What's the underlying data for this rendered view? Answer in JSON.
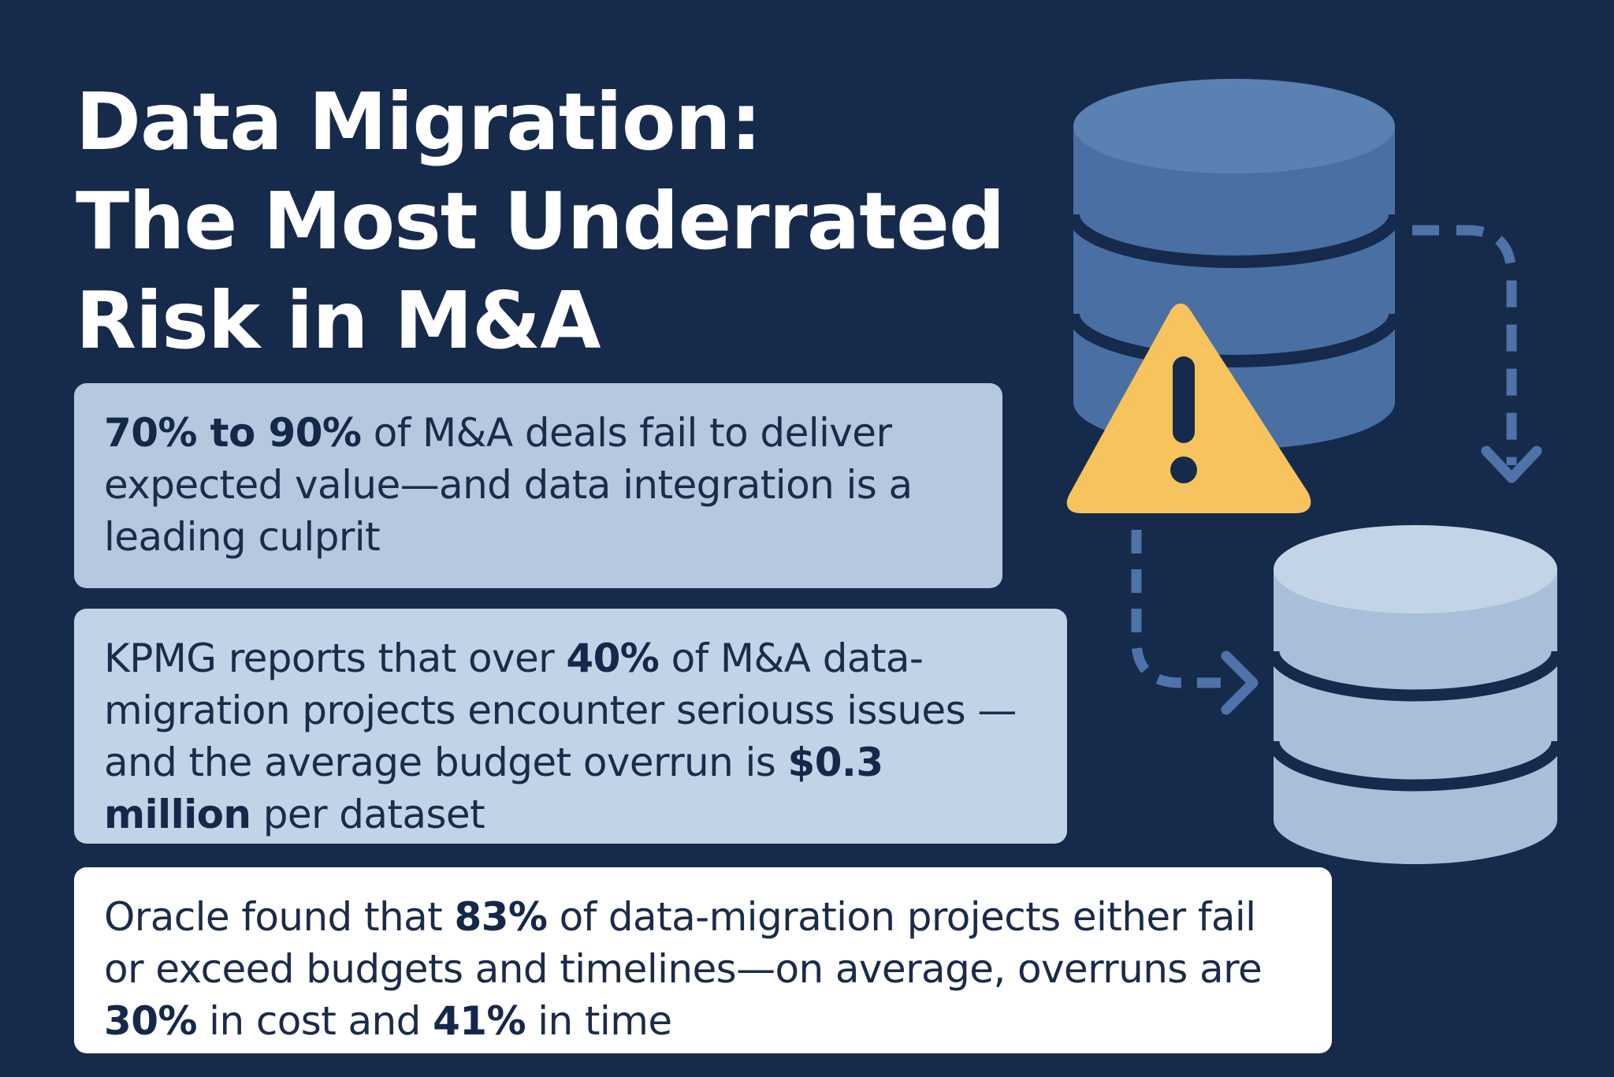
{
  "title": {
    "line1": "Data Migration:",
    "line2": "The Most Underrated",
    "line3": "Risk in M&A"
  },
  "stat_cards": [
    {
      "highlight": "70% to 90%",
      "text_after": " of M&A deals fail to deliver expected value—and data integration is a leading culprit"
    },
    {
      "text_before": "KPMG reports that over ",
      "highlight1": "40%",
      "text_middle": " of M&A data-migration projects encounter seriouss issues —and the average budget overrun is ",
      "highlight2": "$0.3 million",
      "text_after": " per dataset"
    },
    {
      "text_before": "Oracle found that ",
      "highlight1": "83%",
      "text_middle1": " of data-migration projects either fail or exceed budgets and timelines—on average, overruns are ",
      "highlight2": "30%",
      "text_middle2": " in cost and ",
      "highlight3": "41%",
      "text_after": " in time"
    }
  ],
  "illustration": {
    "source_database_icon": "database-icon",
    "target_database_icon": "database-icon",
    "warning_icon": "warning-triangle-icon",
    "migration_arrow_icon": "dashed-arrow-icon",
    "colors": {
      "background": "#162a4c",
      "source_db": "#4a70a3",
      "source_db_top": "#5980b3",
      "target_db": "#a9bfd9",
      "target_db_top": "#c0d2e6",
      "warning": "#f7c35c",
      "arrow": "#4f73a8"
    }
  }
}
